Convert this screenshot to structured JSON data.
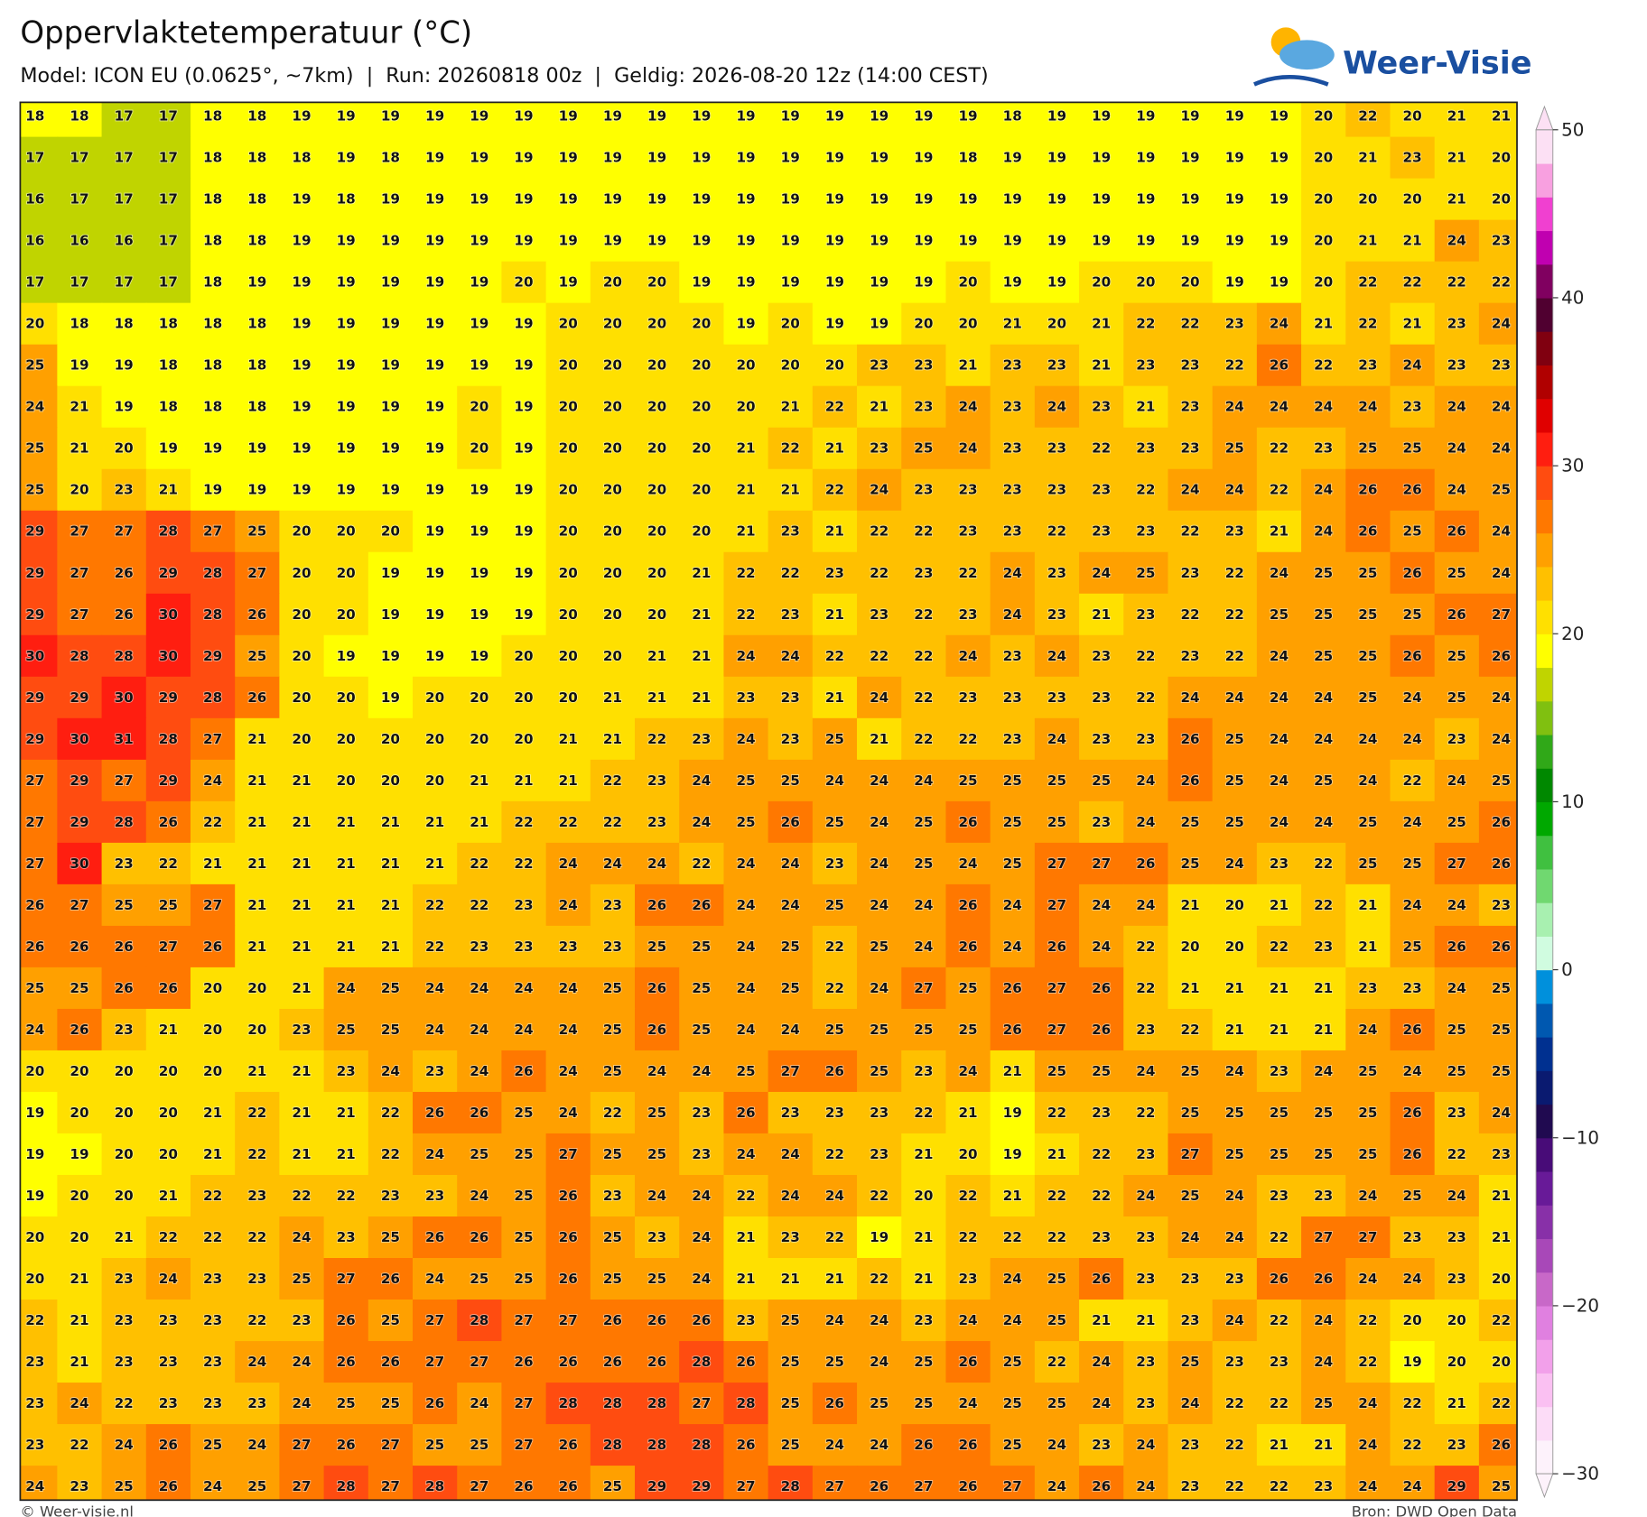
{
  "header": {
    "title": "Oppervlaktetemperatuur (°C)",
    "subtitle": "Model: ICON EU (0.0625°, ~7km)  |  Run: 20260818 00z  |  Geldig: 2026-08-20 12z (14:00 CEST)",
    "logo": "Weer-Visie"
  },
  "chart_data": {
    "type": "heatmap",
    "values": [
      [
        18,
        18,
        17,
        17,
        18,
        18,
        19,
        19,
        19,
        19,
        19,
        19,
        19,
        19,
        19,
        19,
        19,
        19,
        19,
        19,
        19,
        19,
        18,
        19,
        19,
        19,
        19,
        19,
        19,
        20,
        22,
        20,
        21,
        21
      ],
      [
        17,
        17,
        17,
        17,
        18,
        18,
        18,
        19,
        18,
        19,
        19,
        19,
        19,
        19,
        19,
        19,
        19,
        19,
        19,
        19,
        19,
        18,
        19,
        19,
        19,
        19,
        19,
        19,
        19,
        20,
        21,
        23,
        21,
        20
      ],
      [
        16,
        17,
        17,
        17,
        18,
        18,
        19,
        18,
        19,
        19,
        19,
        19,
        19,
        19,
        19,
        19,
        19,
        19,
        19,
        19,
        19,
        19,
        19,
        19,
        19,
        19,
        19,
        19,
        19,
        20,
        20,
        20,
        21,
        20
      ],
      [
        16,
        16,
        16,
        17,
        18,
        18,
        19,
        19,
        19,
        19,
        19,
        19,
        19,
        19,
        19,
        19,
        19,
        19,
        19,
        19,
        19,
        19,
        19,
        19,
        19,
        19,
        19,
        19,
        19,
        20,
        21,
        21,
        24,
        23
      ],
      [
        17,
        17,
        17,
        17,
        18,
        19,
        19,
        19,
        19,
        19,
        19,
        20,
        19,
        20,
        20,
        19,
        19,
        19,
        19,
        19,
        19,
        20,
        19,
        19,
        20,
        20,
        20,
        19,
        19,
        20,
        22,
        22,
        22,
        22
      ],
      [
        20,
        18,
        18,
        18,
        18,
        18,
        19,
        19,
        19,
        19,
        19,
        19,
        20,
        20,
        20,
        20,
        19,
        20,
        19,
        19,
        20,
        20,
        21,
        20,
        21,
        22,
        22,
        23,
        24,
        21,
        22,
        21,
        23,
        24
      ],
      [
        25,
        19,
        19,
        18,
        18,
        18,
        19,
        19,
        19,
        19,
        19,
        19,
        20,
        20,
        20,
        20,
        20,
        20,
        20,
        23,
        23,
        21,
        23,
        23,
        21,
        23,
        23,
        22,
        26,
        22,
        23,
        24,
        23,
        23
      ],
      [
        24,
        21,
        19,
        18,
        18,
        18,
        19,
        19,
        19,
        19,
        20,
        19,
        20,
        20,
        20,
        20,
        20,
        21,
        22,
        21,
        23,
        24,
        23,
        24,
        23,
        21,
        23,
        24,
        24,
        24,
        24,
        23,
        24,
        24
      ],
      [
        25,
        21,
        20,
        19,
        19,
        19,
        19,
        19,
        19,
        19,
        20,
        19,
        20,
        20,
        20,
        20,
        21,
        22,
        21,
        23,
        25,
        24,
        23,
        23,
        22,
        23,
        23,
        25,
        22,
        23,
        25,
        25,
        24,
        24
      ],
      [
        25,
        20,
        23,
        21,
        19,
        19,
        19,
        19,
        19,
        19,
        19,
        19,
        20,
        20,
        20,
        20,
        21,
        21,
        22,
        24,
        23,
        23,
        23,
        23,
        23,
        22,
        24,
        24,
        22,
        24,
        26,
        26,
        24,
        25
      ],
      [
        29,
        27,
        27,
        28,
        27,
        25,
        20,
        20,
        20,
        19,
        19,
        19,
        20,
        20,
        20,
        20,
        21,
        23,
        21,
        22,
        22,
        23,
        23,
        22,
        23,
        23,
        22,
        23,
        21,
        24,
        26,
        25,
        26,
        24
      ],
      [
        29,
        27,
        26,
        29,
        28,
        27,
        20,
        20,
        19,
        19,
        19,
        19,
        20,
        20,
        20,
        21,
        22,
        22,
        23,
        22,
        23,
        22,
        24,
        23,
        24,
        25,
        23,
        22,
        24,
        25,
        25,
        26,
        25,
        24
      ],
      [
        29,
        27,
        26,
        30,
        28,
        26,
        20,
        20,
        19,
        19,
        19,
        19,
        20,
        20,
        20,
        21,
        22,
        23,
        21,
        23,
        22,
        23,
        24,
        23,
        21,
        23,
        22,
        22,
        25,
        25,
        25,
        25,
        26,
        27
      ],
      [
        30,
        28,
        28,
        30,
        29,
        25,
        20,
        19,
        19,
        19,
        19,
        20,
        20,
        20,
        21,
        21,
        24,
        24,
        22,
        22,
        22,
        24,
        23,
        24,
        23,
        22,
        23,
        22,
        24,
        25,
        25,
        26,
        25,
        26
      ],
      [
        29,
        29,
        30,
        29,
        28,
        26,
        20,
        20,
        19,
        20,
        20,
        20,
        20,
        21,
        21,
        21,
        23,
        23,
        21,
        24,
        22,
        23,
        23,
        23,
        23,
        22,
        24,
        24,
        24,
        24,
        25,
        24,
        25,
        24
      ],
      [
        29,
        30,
        31,
        28,
        27,
        21,
        20,
        20,
        20,
        20,
        20,
        20,
        21,
        21,
        22,
        23,
        24,
        23,
        25,
        21,
        22,
        22,
        23,
        24,
        23,
        23,
        26,
        25,
        24,
        24,
        24,
        24,
        23,
        24
      ],
      [
        27,
        29,
        27,
        29,
        24,
        21,
        21,
        20,
        20,
        20,
        21,
        21,
        21,
        22,
        23,
        24,
        25,
        25,
        24,
        24,
        24,
        25,
        25,
        25,
        25,
        24,
        26,
        25,
        24,
        25,
        24,
        22,
        24,
        25
      ],
      [
        27,
        29,
        28,
        26,
        22,
        21,
        21,
        21,
        21,
        21,
        21,
        22,
        22,
        22,
        23,
        24,
        25,
        26,
        25,
        24,
        25,
        26,
        25,
        25,
        23,
        24,
        25,
        25,
        24,
        24,
        25,
        24,
        25,
        26
      ],
      [
        27,
        30,
        23,
        22,
        21,
        21,
        21,
        21,
        21,
        21,
        22,
        22,
        24,
        24,
        24,
        22,
        24,
        24,
        23,
        24,
        25,
        24,
        25,
        27,
        27,
        26,
        25,
        24,
        23,
        22,
        25,
        25,
        27,
        26
      ],
      [
        26,
        27,
        25,
        25,
        27,
        21,
        21,
        21,
        21,
        22,
        22,
        23,
        24,
        23,
        26,
        26,
        24,
        24,
        25,
        24,
        24,
        26,
        24,
        27,
        24,
        24,
        21,
        20,
        21,
        22,
        21,
        24,
        24,
        23
      ],
      [
        26,
        26,
        26,
        27,
        26,
        21,
        21,
        21,
        21,
        22,
        23,
        23,
        23,
        23,
        25,
        25,
        24,
        25,
        22,
        25,
        24,
        26,
        24,
        26,
        24,
        22,
        20,
        20,
        22,
        23,
        21,
        25,
        26,
        26
      ],
      [
        25,
        25,
        26,
        26,
        20,
        20,
        21,
        24,
        25,
        24,
        24,
        24,
        24,
        25,
        26,
        25,
        24,
        25,
        22,
        24,
        27,
        25,
        26,
        27,
        26,
        22,
        21,
        21,
        21,
        21,
        23,
        23,
        24,
        25
      ],
      [
        24,
        26,
        23,
        21,
        20,
        20,
        23,
        25,
        25,
        24,
        24,
        24,
        24,
        25,
        26,
        25,
        24,
        24,
        25,
        25,
        25,
        25,
        26,
        27,
        26,
        23,
        22,
        21,
        21,
        21,
        24,
        26,
        25,
        25
      ],
      [
        20,
        20,
        20,
        20,
        20,
        21,
        21,
        23,
        24,
        23,
        24,
        26,
        24,
        25,
        24,
        24,
        25,
        27,
        26,
        25,
        23,
        24,
        21,
        25,
        25,
        24,
        25,
        24,
        23,
        24,
        25,
        24,
        25,
        25
      ],
      [
        19,
        20,
        20,
        20,
        21,
        22,
        21,
        21,
        22,
        26,
        26,
        25,
        24,
        22,
        25,
        23,
        26,
        23,
        23,
        23,
        22,
        21,
        19,
        22,
        23,
        22,
        25,
        25,
        25,
        25,
        25,
        26,
        23,
        24
      ],
      [
        19,
        19,
        20,
        20,
        21,
        22,
        21,
        21,
        22,
        24,
        25,
        25,
        27,
        25,
        25,
        23,
        24,
        24,
        22,
        23,
        21,
        20,
        19,
        21,
        22,
        23,
        27,
        25,
        25,
        25,
        25,
        26,
        22,
        23
      ],
      [
        19,
        20,
        20,
        21,
        22,
        23,
        22,
        22,
        23,
        23,
        24,
        25,
        26,
        23,
        24,
        24,
        22,
        24,
        24,
        22,
        20,
        22,
        21,
        22,
        22,
        24,
        25,
        24,
        23,
        23,
        24,
        25,
        24,
        21
      ],
      [
        20,
        20,
        21,
        22,
        22,
        22,
        24,
        23,
        25,
        26,
        26,
        25,
        26,
        25,
        23,
        24,
        21,
        23,
        22,
        19,
        21,
        22,
        22,
        22,
        23,
        23,
        24,
        24,
        22,
        27,
        27,
        23,
        23,
        21
      ],
      [
        20,
        21,
        23,
        24,
        23,
        23,
        25,
        27,
        26,
        24,
        25,
        25,
        26,
        25,
        25,
        24,
        21,
        21,
        21,
        22,
        21,
        23,
        24,
        25,
        26,
        23,
        23,
        23,
        26,
        26,
        24,
        24,
        23,
        20
      ],
      [
        22,
        21,
        23,
        23,
        23,
        22,
        23,
        26,
        25,
        27,
        28,
        27,
        27,
        26,
        26,
        26,
        23,
        25,
        24,
        24,
        23,
        24,
        24,
        25,
        21,
        21,
        23,
        24,
        22,
        24,
        22,
        20,
        20,
        22
      ],
      [
        23,
        21,
        23,
        23,
        23,
        24,
        24,
        26,
        26,
        27,
        27,
        26,
        26,
        26,
        26,
        28,
        26,
        25,
        25,
        24,
        25,
        26,
        25,
        22,
        24,
        23,
        25,
        23,
        23,
        24,
        22,
        19,
        20,
        20
      ],
      [
        23,
        24,
        22,
        23,
        23,
        23,
        24,
        25,
        25,
        26,
        24,
        27,
        28,
        28,
        28,
        27,
        28,
        25,
        26,
        25,
        25,
        24,
        25,
        25,
        24,
        23,
        24,
        22,
        22,
        25,
        24,
        22,
        21,
        22
      ],
      [
        23,
        22,
        24,
        26,
        25,
        24,
        27,
        26,
        27,
        25,
        25,
        27,
        26,
        28,
        28,
        28,
        26,
        25,
        24,
        24,
        26,
        26,
        25,
        24,
        23,
        24,
        23,
        22,
        21,
        21,
        24,
        22,
        23,
        26
      ],
      [
        24,
        23,
        25,
        26,
        24,
        25,
        27,
        28,
        27,
        28,
        27,
        26,
        26,
        25,
        29,
        29,
        27,
        28,
        27,
        26,
        27,
        26,
        27,
        24,
        26,
        24,
        23,
        22,
        22,
        23,
        24,
        24,
        29,
        25
      ]
    ],
    "colorbar": {
      "clim": [
        -30,
        50
      ],
      "ticks": [
        {
          "value": -30,
          "label": "−30"
        },
        {
          "value": -20,
          "label": "−20"
        },
        {
          "value": -10,
          "label": "−10"
        },
        0,
        10,
        20,
        30,
        40,
        50
      ],
      "colors": [
        "#fdf2fb",
        "#fcdcf7",
        "#fac0f2",
        "#f2a0ea",
        "#e080e0",
        "#c868c8",
        "#a848b8",
        "#8830a8",
        "#681a98",
        "#480c78",
        "#200a50",
        "#0a1a70",
        "#003090",
        "#0058b0",
        "#0090dc",
        "#d0fce0",
        "#a8f0b0",
        "#70d870",
        "#40c040",
        "#00a800",
        "#008800",
        "#30a818",
        "#80c010",
        "#c0d400",
        "#ffff00",
        "#ffe000",
        "#ffc000",
        "#ffa000",
        "#ff7800",
        "#ff4c10",
        "#ff1e10",
        "#e00000",
        "#b00000",
        "#800010",
        "#500030",
        "#800060",
        "#c000b0",
        "#f040d0",
        "#f8a0e0",
        "#fce0f4"
      ]
    }
  },
  "footer": {
    "left": "© Weer-visie.nl",
    "right": "Bron: DWD Open Data"
  }
}
